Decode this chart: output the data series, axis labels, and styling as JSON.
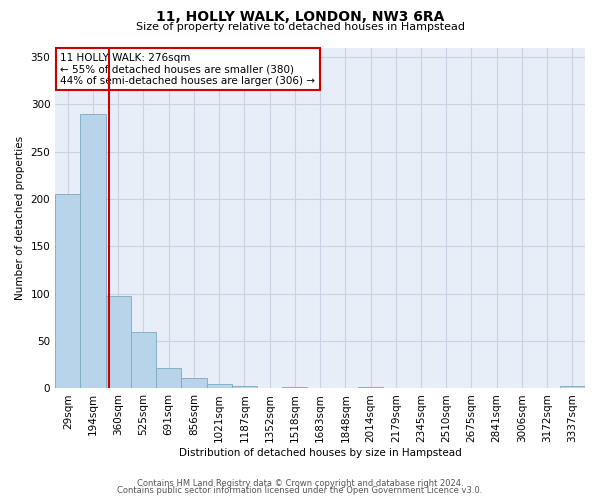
{
  "title": "11, HOLLY WALK, LONDON, NW3 6RA",
  "subtitle": "Size of property relative to detached houses in Hampstead",
  "xlabel": "Distribution of detached houses by size in Hampstead",
  "ylabel": "Number of detached properties",
  "bar_labels": [
    "29sqm",
    "194sqm",
    "360sqm",
    "525sqm",
    "691sqm",
    "856sqm",
    "1021sqm",
    "1187sqm",
    "1352sqm",
    "1518sqm",
    "1683sqm",
    "1848sqm",
    "2014sqm",
    "2179sqm",
    "2345sqm",
    "2510sqm",
    "2675sqm",
    "2841sqm",
    "3006sqm",
    "3172sqm",
    "3337sqm"
  ],
  "bar_heights": [
    205,
    290,
    97,
    60,
    21,
    11,
    5,
    2,
    0,
    1,
    0,
    0,
    1,
    0,
    0,
    0,
    0,
    0,
    0,
    0,
    2
  ],
  "bar_color": "#b8d4ea",
  "bar_edge_color": "#7aaabf",
  "vline_x": 1.62,
  "vline_color": "#cc0000",
  "annotation_title": "11 HOLLY WALK: 276sqm",
  "annotation_line1": "← 55% of detached houses are smaller (380)",
  "annotation_line2": "44% of semi-detached houses are larger (306) →",
  "annotation_box_color": "#cc0000",
  "ylim": [
    0,
    360
  ],
  "yticks": [
    0,
    50,
    100,
    150,
    200,
    250,
    300,
    350
  ],
  "footer1": "Contains HM Land Registry data © Crown copyright and database right 2024.",
  "footer2": "Contains public sector information licensed under the Open Government Licence v3.0.",
  "bg_color": "#ffffff",
  "plot_bg_color": "#e8eef8",
  "grid_color": "#c8d4e4"
}
